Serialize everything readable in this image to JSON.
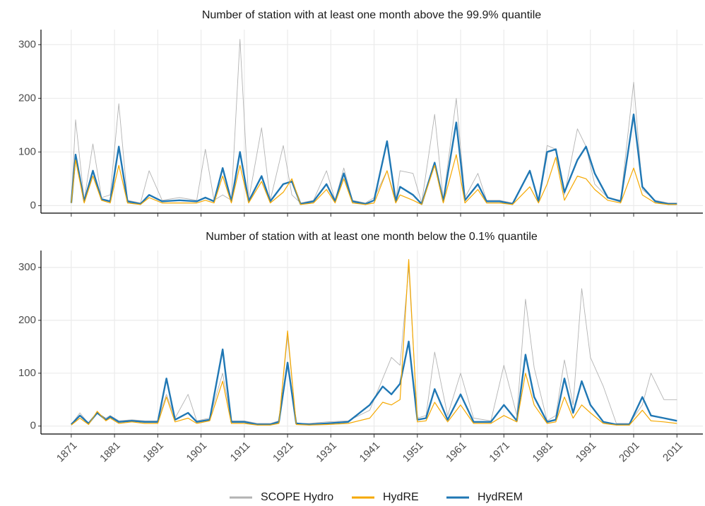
{
  "chart_data": [
    {
      "type": "line",
      "title": "Number of station with at least one month above the 99.9% quantile",
      "x": [
        1871,
        1872,
        1874,
        1876,
        1878,
        1880,
        1882,
        1884,
        1887,
        1889,
        1892,
        1896,
        1900,
        1902,
        1904,
        1906,
        1908,
        1910,
        1912,
        1915,
        1917,
        1920,
        1922,
        1924,
        1927,
        1930,
        1932,
        1934,
        1936,
        1939,
        1941,
        1944,
        1946,
        1947,
        1950,
        1952,
        1955,
        1957,
        1960,
        1962,
        1965,
        1967,
        1970,
        1973,
        1977,
        1979,
        1981,
        1983,
        1985,
        1988,
        1990,
        1992,
        1995,
        1998,
        2001,
        2003,
        2006,
        2009,
        2011
      ],
      "series": [
        {
          "name": "SCOPE Hydro",
          "color": "#b3b3b3",
          "values": [
            5,
            160,
            10,
            115,
            15,
            20,
            190,
            10,
            5,
            65,
            10,
            15,
            10,
            105,
            10,
            20,
            10,
            310,
            10,
            145,
            10,
            112,
            20,
            5,
            10,
            65,
            10,
            70,
            10,
            5,
            15,
            65,
            10,
            65,
            60,
            5,
            170,
            10,
            200,
            15,
            60,
            10,
            10,
            5,
            65,
            10,
            112,
            105,
            20,
            143,
            110,
            40,
            15,
            10,
            230,
            30,
            10,
            5,
            5
          ]
        },
        {
          "name": "HydRE",
          "color": "#f5a800",
          "values": [
            5,
            85,
            5,
            55,
            10,
            5,
            75,
            5,
            2,
            15,
            5,
            5,
            5,
            10,
            5,
            55,
            5,
            75,
            5,
            45,
            5,
            25,
            50,
            2,
            5,
            30,
            5,
            50,
            5,
            2,
            5,
            65,
            5,
            20,
            10,
            2,
            75,
            5,
            95,
            5,
            30,
            5,
            5,
            2,
            35,
            5,
            40,
            90,
            10,
            55,
            50,
            30,
            10,
            5,
            70,
            20,
            5,
            2,
            2
          ]
        },
        {
          "name": "HydREM",
          "color": "#1f77b4",
          "values": [
            5,
            95,
            8,
            65,
            12,
            8,
            110,
            8,
            3,
            20,
            8,
            10,
            8,
            15,
            8,
            70,
            8,
            100,
            8,
            55,
            8,
            40,
            45,
            3,
            8,
            40,
            8,
            60,
            8,
            3,
            10,
            120,
            8,
            35,
            20,
            3,
            80,
            8,
            155,
            10,
            40,
            8,
            8,
            3,
            65,
            8,
            100,
            105,
            25,
            85,
            110,
            60,
            15,
            8,
            170,
            35,
            8,
            3,
            3
          ]
        }
      ],
      "xlim": [
        1864,
        2017
      ],
      "ylim": [
        -14,
        328
      ],
      "yticks": [
        0,
        100,
        200,
        300
      ],
      "grid": true
    },
    {
      "type": "line",
      "title": "Number of station with at least one month below the 0.1% quantile",
      "x": [
        1871,
        1873,
        1875,
        1877,
        1879,
        1880,
        1882,
        1885,
        1888,
        1891,
        1893,
        1895,
        1898,
        1900,
        1903,
        1906,
        1908,
        1911,
        1914,
        1917,
        1919,
        1921,
        1923,
        1926,
        1930,
        1935,
        1940,
        1943,
        1945,
        1947,
        1949,
        1951,
        1953,
        1955,
        1958,
        1961,
        1964,
        1968,
        1971,
        1974,
        1976,
        1978,
        1981,
        1983,
        1985,
        1987,
        1989,
        1991,
        1994,
        1997,
        2000,
        2003,
        2005,
        2008,
        2011
      ],
      "series": [
        {
          "color": "#b3b3b3",
          "values": [
            3,
            25,
            5,
            25,
            15,
            20,
            10,
            12,
            10,
            10,
            60,
            15,
            60,
            10,
            15,
            100,
            10,
            10,
            5,
            5,
            10,
            170,
            5,
            5,
            8,
            10,
            30,
            90,
            130,
            115,
            300,
            15,
            20,
            140,
            20,
            100,
            15,
            10,
            115,
            20,
            240,
            110,
            10,
            20,
            125,
            40,
            260,
            130,
            75,
            5,
            5,
            40,
            100,
            50,
            50
          ]
        },
        {
          "color": "#f5a800",
          "values": [
            2,
            15,
            3,
            28,
            10,
            15,
            5,
            8,
            5,
            5,
            55,
            8,
            15,
            5,
            10,
            85,
            5,
            5,
            2,
            2,
            5,
            180,
            3,
            2,
            3,
            5,
            15,
            45,
            40,
            50,
            315,
            8,
            10,
            45,
            8,
            40,
            5,
            5,
            20,
            8,
            100,
            40,
            5,
            8,
            55,
            15,
            40,
            25,
            5,
            2,
            2,
            30,
            10,
            8,
            5
          ]
        },
        {
          "color": "#1f77b4",
          "values": [
            3,
            20,
            5,
            25,
            12,
            18,
            8,
            10,
            8,
            8,
            90,
            12,
            25,
            8,
            12,
            145,
            8,
            8,
            3,
            3,
            8,
            120,
            5,
            3,
            5,
            8,
            40,
            75,
            60,
            80,
            160,
            12,
            15,
            70,
            12,
            60,
            8,
            8,
            40,
            10,
            135,
            55,
            8,
            12,
            90,
            25,
            85,
            40,
            8,
            3,
            3,
            55,
            20,
            15,
            10
          ]
        }
      ],
      "xlim": [
        1864,
        2017
      ],
      "ylim": [
        -15,
        332
      ],
      "yticks": [
        0,
        100,
        200,
        300
      ],
      "xticks": [
        1871,
        1881,
        1891,
        1901,
        1911,
        1921,
        1931,
        1941,
        1951,
        1961,
        1971,
        1981,
        1991,
        2001,
        2011
      ],
      "grid": true
    }
  ]
}
